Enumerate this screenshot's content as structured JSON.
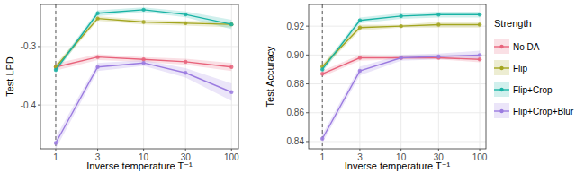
{
  "chart_data": [
    {
      "type": "line",
      "y_label": "Test LPD",
      "x_label": "Inverse temperature T⁻¹",
      "log": "x",
      "grid": true,
      "marker": "circle",
      "x": [
        1,
        3,
        10,
        30,
        100
      ],
      "xlim": [
        0.67,
        120
      ],
      "xticks": [
        1,
        3,
        10,
        30,
        100
      ],
      "ylim": [
        -0.475,
        -0.228
      ],
      "yticks": [
        -0.4,
        -0.3
      ],
      "vline": 1,
      "series": [
        {
          "color": "#e8637b",
          "values": [
            -0.335,
            -0.318,
            -0.322,
            -0.326,
            -0.335
          ],
          "lower": [
            -0.341,
            -0.323,
            -0.326,
            -0.331,
            -0.342
          ],
          "upper": [
            -0.329,
            -0.313,
            -0.318,
            -0.321,
            -0.328
          ]
        },
        {
          "color": "#a3a51f",
          "values": [
            -0.335,
            -0.252,
            -0.258,
            -0.26,
            -0.262
          ],
          "lower": [
            -0.34,
            -0.256,
            -0.262,
            -0.264,
            -0.267
          ],
          "upper": [
            -0.33,
            -0.248,
            -0.254,
            -0.256,
            -0.257
          ]
        },
        {
          "color": "#19b3a5",
          "values": [
            -0.34,
            -0.243,
            -0.237,
            -0.245,
            -0.262
          ],
          "lower": [
            -0.345,
            -0.248,
            -0.241,
            -0.25,
            -0.27
          ],
          "upper": [
            -0.335,
            -0.238,
            -0.233,
            -0.24,
            -0.254
          ]
        },
        {
          "color": "#9b7be0",
          "values": [
            -0.465,
            -0.335,
            -0.328,
            -0.345,
            -0.378
          ],
          "lower": [
            -0.475,
            -0.342,
            -0.333,
            -0.353,
            -0.393
          ],
          "upper": [
            -0.455,
            -0.328,
            -0.323,
            -0.337,
            -0.363
          ]
        }
      ]
    },
    {
      "type": "line",
      "y_label": "Test Accuracy",
      "x_label": "Inverse temperature T⁻¹",
      "log": "x",
      "grid": true,
      "marker": "circle",
      "legend": "right",
      "legend_title": "Strength",
      "x": [
        1,
        3,
        10,
        30,
        100
      ],
      "xlim": [
        0.67,
        120
      ],
      "xticks": [
        1,
        3,
        10,
        30,
        100
      ],
      "ylim": [
        0.835,
        0.935
      ],
      "yticks": [
        0.84,
        0.86,
        0.88,
        {
          "value": 0.9,
          "label": "0.90"
        },
        0.92
      ],
      "vline": 1,
      "series": [
        {
          "name": "No DA",
          "color": "#e8637b",
          "values": [
            0.887,
            0.898,
            0.898,
            0.898,
            0.897
          ],
          "lower": [
            0.885,
            0.896,
            0.897,
            0.897,
            0.895
          ],
          "upper": [
            0.889,
            0.9,
            0.899,
            0.899,
            0.899
          ]
        },
        {
          "name": "Flip",
          "color": "#a3a51f",
          "values": [
            0.892,
            0.919,
            0.92,
            0.921,
            0.921
          ],
          "lower": [
            0.89,
            0.917,
            0.919,
            0.919,
            0.919
          ],
          "upper": [
            0.894,
            0.921,
            0.921,
            0.923,
            0.923
          ]
        },
        {
          "name": "Flip+Crop",
          "color": "#19b3a5",
          "values": [
            0.89,
            0.924,
            0.927,
            0.928,
            0.928
          ],
          "lower": [
            0.888,
            0.922,
            0.925,
            0.926,
            0.926
          ],
          "upper": [
            0.892,
            0.926,
            0.929,
            0.93,
            0.93
          ]
        },
        {
          "name": "Flip+Crop+Blur",
          "color": "#9b7be0",
          "values": [
            0.842,
            0.889,
            0.898,
            0.899,
            0.9
          ],
          "lower": [
            0.839,
            0.886,
            0.896,
            0.897,
            0.897
          ],
          "upper": [
            0.845,
            0.892,
            0.9,
            0.901,
            0.903
          ]
        }
      ]
    }
  ]
}
